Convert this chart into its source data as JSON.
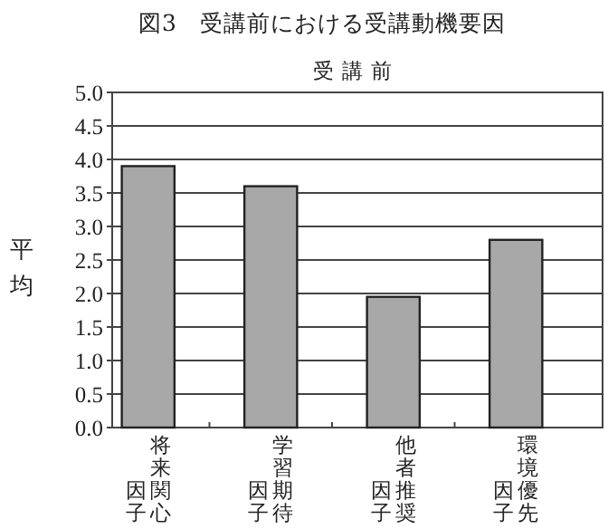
{
  "chart_data": {
    "type": "bar",
    "title": "図3　受講前における受講動機要因",
    "subtitle": "受講前",
    "ylabel": "平均",
    "categories": [
      "将来関心因子",
      "学習期待因子",
      "他者推奨因子",
      "環境優先因子"
    ],
    "values": [
      3.9,
      3.6,
      1.95,
      2.8
    ],
    "color": "#a8a8a8",
    "ylim": [
      0,
      5
    ],
    "yticks": [
      {
        "value": 0,
        "label": "0.0"
      },
      {
        "value": 0.5,
        "label": "0.5"
      },
      {
        "value": 1,
        "label": "1.0"
      },
      {
        "value": 1.5,
        "label": "1.5"
      },
      {
        "value": 2,
        "label": "2.0"
      },
      {
        "value": 2.5,
        "label": "2.5"
      },
      {
        "value": 3,
        "label": "3.0"
      },
      {
        "value": 3.5,
        "label": "3.5"
      },
      {
        "value": 4,
        "label": "4.0"
      },
      {
        "value": 4.5,
        "label": "4.5"
      },
      {
        "value": 5,
        "label": "5.0"
      }
    ],
    "grid": "y"
  }
}
